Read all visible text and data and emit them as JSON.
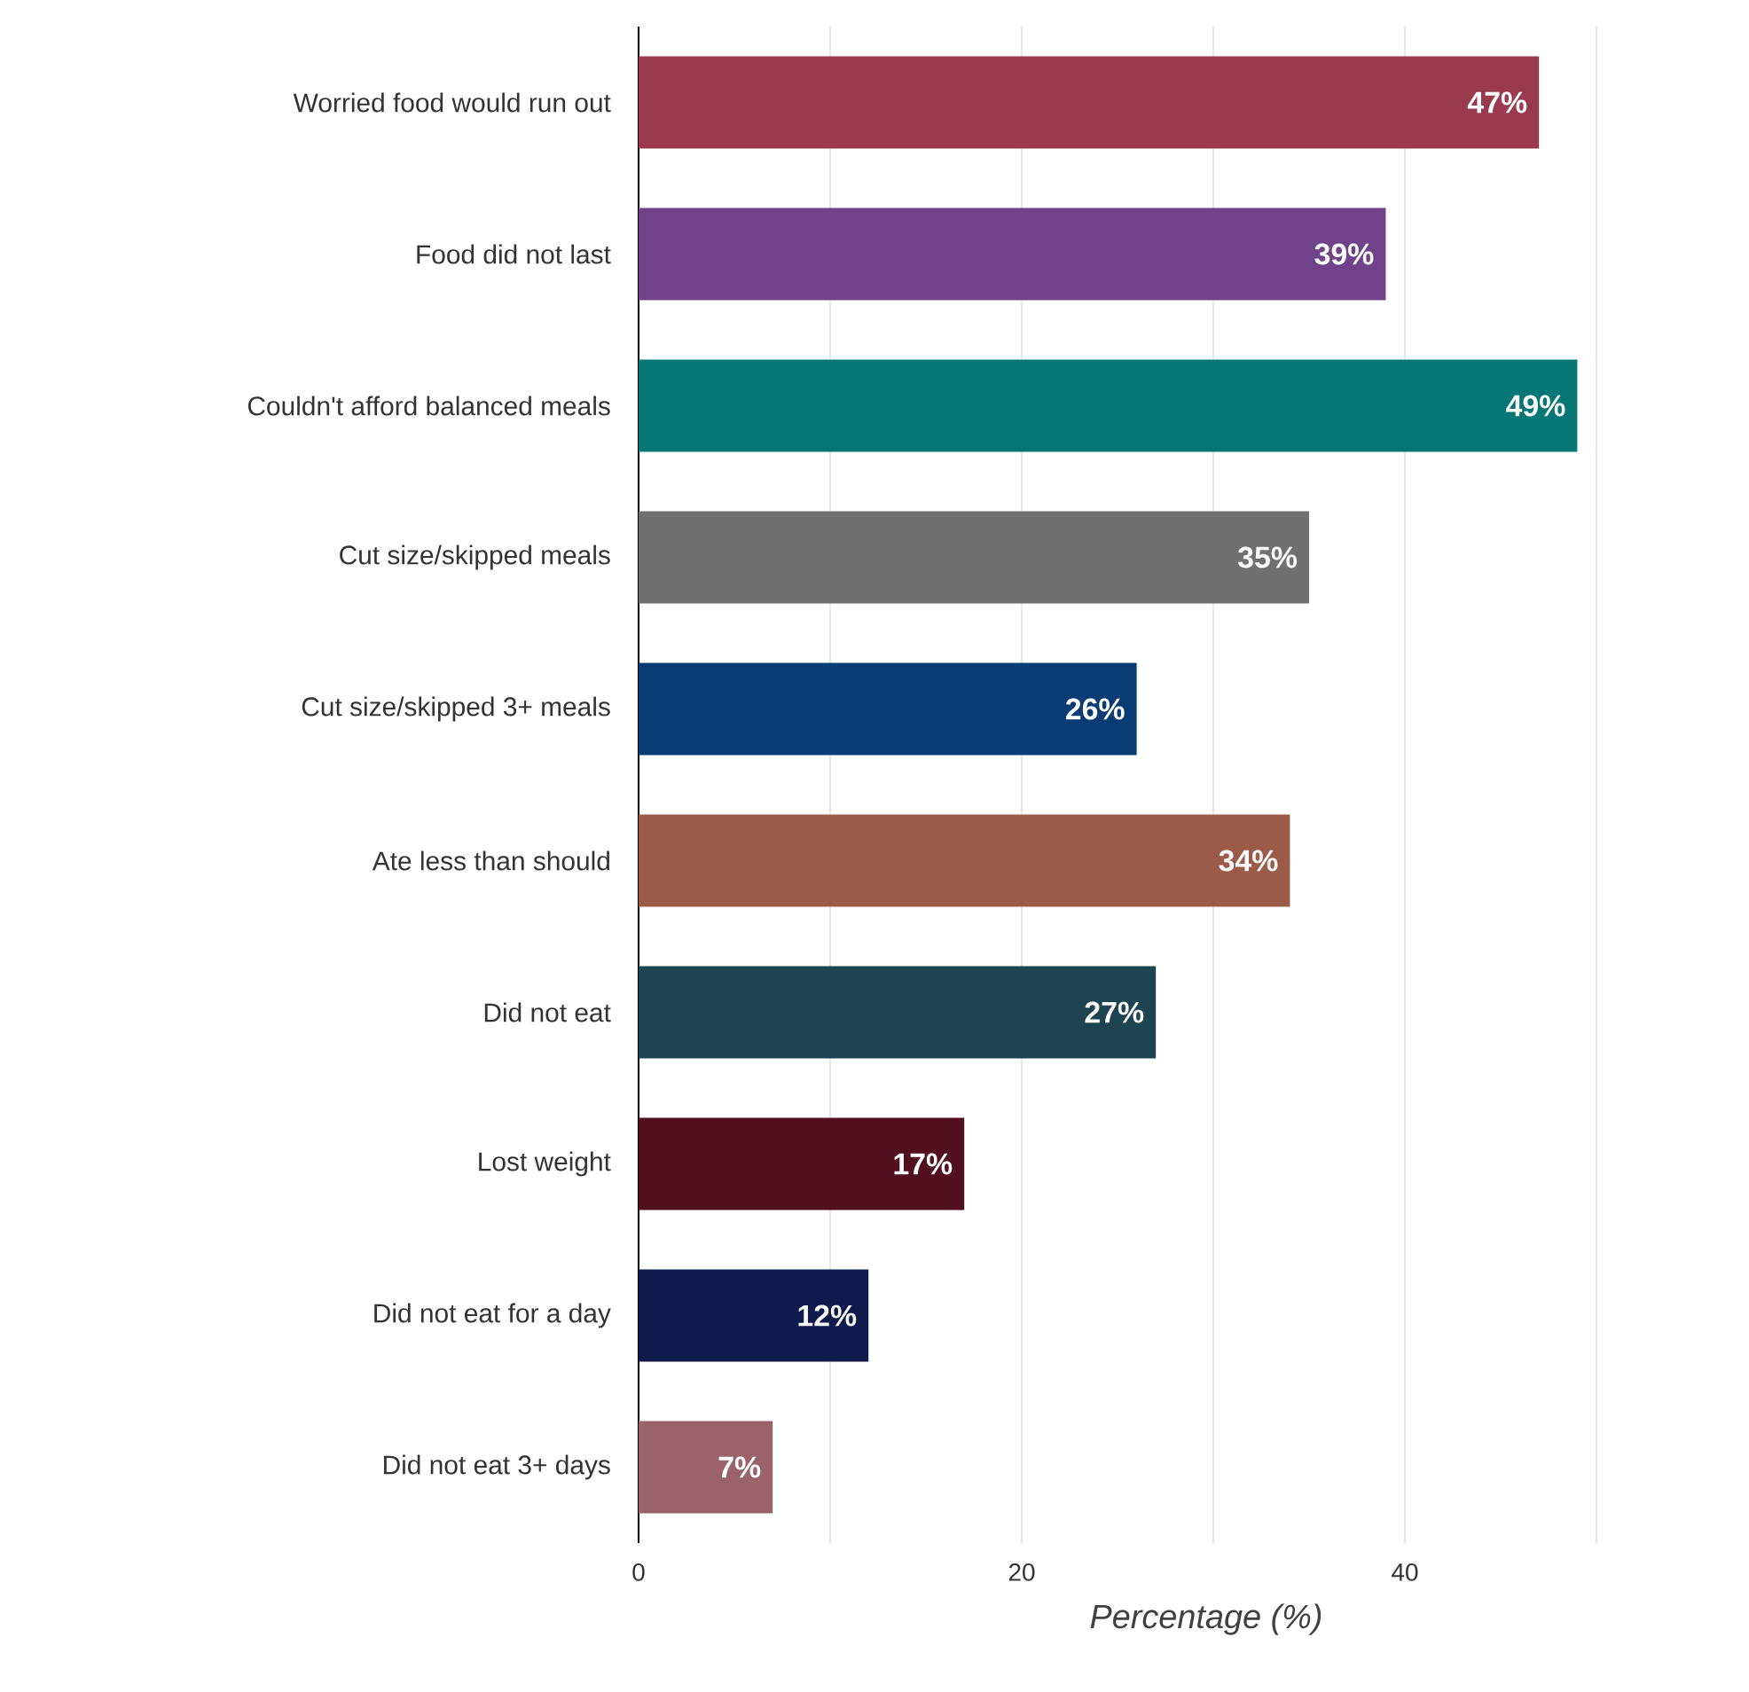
{
  "chart_data": {
    "type": "bar",
    "orientation": "horizontal",
    "xlabel": "Percentage (%)",
    "categories": [
      "Worried food would run out",
      "Food did not last",
      "Couldn't afford balanced meals",
      "Cut size/skipped meals",
      "Cut size/skipped 3+ meals",
      "Ate less than should",
      "Did not eat",
      "Lost weight",
      "Did not eat for a day",
      "Did not eat 3+ days"
    ],
    "values": [
      47,
      39,
      49,
      35,
      26,
      34,
      27,
      17,
      12,
      7
    ],
    "value_labels": [
      "47%",
      "39%",
      "49%",
      "35%",
      "26%",
      "34%",
      "27%",
      "17%",
      "12%",
      "7%"
    ],
    "colors": [
      "#9b3a4e",
      "#6f4289",
      "#067775",
      "#707070",
      "#093c74",
      "#9c5a48",
      "#1e4451",
      "#520f1f",
      "#0e1a4b",
      "#9a626b"
    ],
    "xlim": [
      0,
      50
    ],
    "xticks": [
      0,
      {
        "value": 10,
        "label": null
      },
      20,
      {
        "value": 30,
        "label": null
      },
      40,
      {
        "value": 50,
        "label": null
      }
    ],
    "grid": "x"
  }
}
